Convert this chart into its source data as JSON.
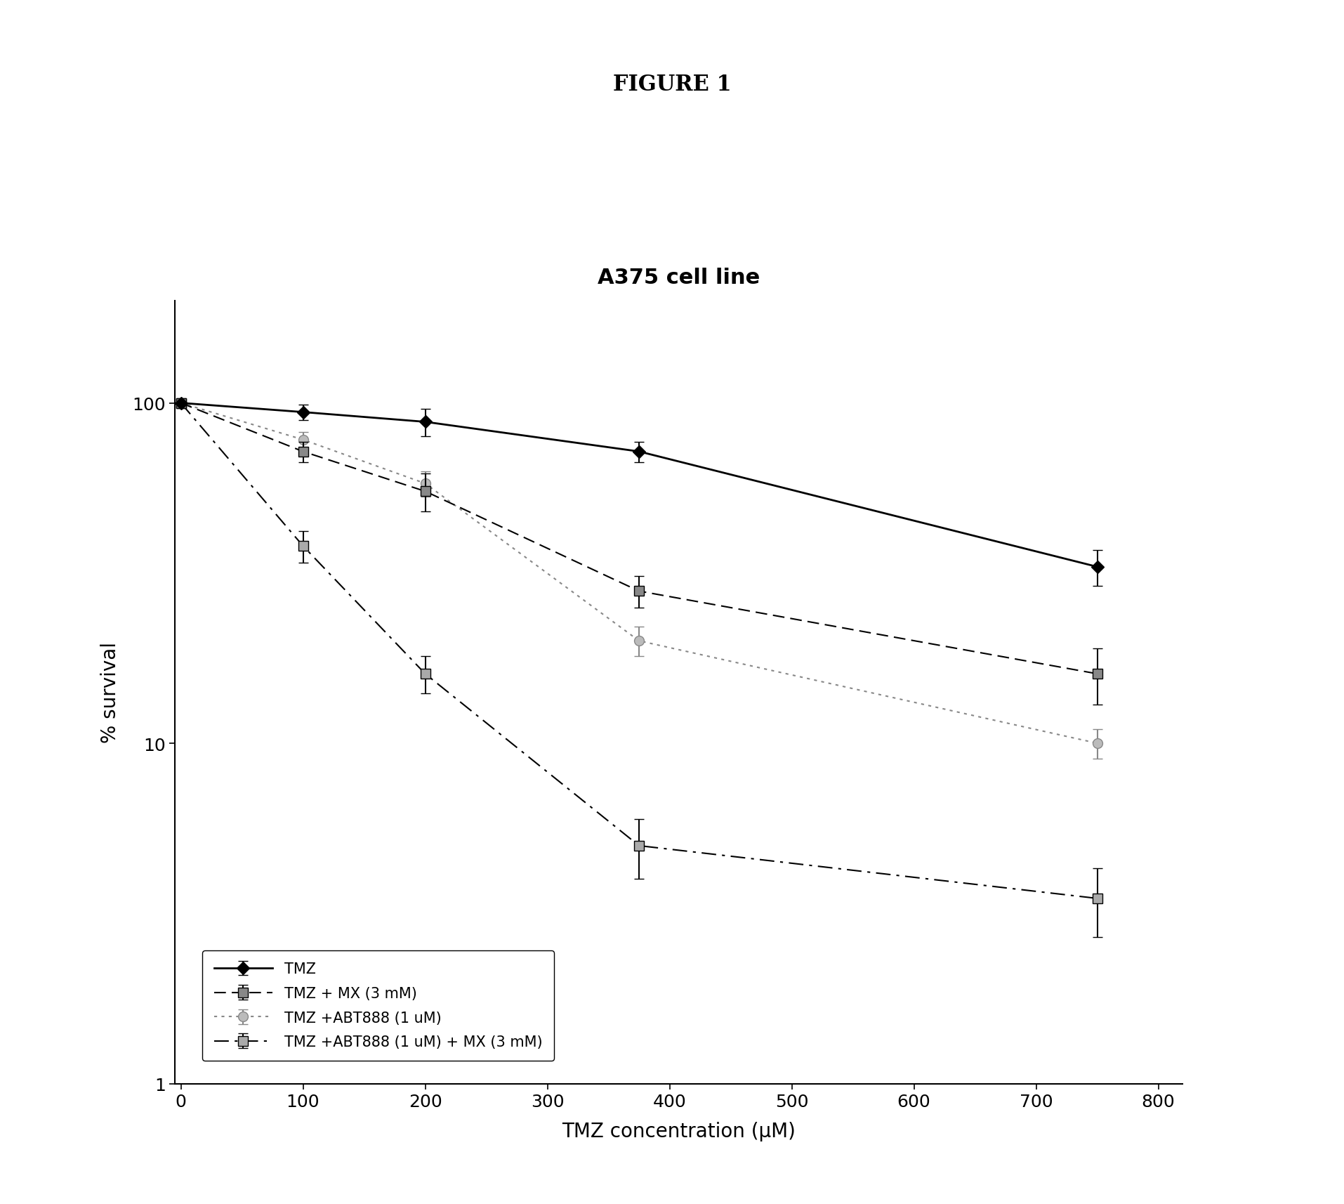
{
  "title": "A375 cell line",
  "figure_label": "FIGURE 1",
  "xlabel": "TMZ concentration (μM)",
  "ylabel": "% survival",
  "xlim": [
    -5,
    820
  ],
  "ylim": [
    1,
    200
  ],
  "yticks": [
    1,
    10,
    100
  ],
  "ytick_labels": [
    "1",
    "10",
    "100"
  ],
  "xticks": [
    0,
    100,
    200,
    300,
    400,
    500,
    600,
    700,
    800
  ],
  "series": [
    {
      "label": "TMZ",
      "x": [
        0,
        100,
        200,
        375,
        750
      ],
      "y": [
        100,
        94,
        88,
        72,
        33
      ],
      "yerr": [
        0,
        5,
        8,
        5,
        4
      ],
      "color": "#000000",
      "ecolor": "#000000",
      "linestyle": "solid",
      "linewidth": 2.0,
      "marker": "D",
      "markersize": 9,
      "markerfacecolor": "#000000",
      "markeredgecolor": "#000000"
    },
    {
      "label": "TMZ + MX (3 mM)",
      "x": [
        0,
        100,
        200,
        375,
        750
      ],
      "y": [
        100,
        72,
        55,
        28,
        16
      ],
      "yerr": [
        0,
        5,
        7,
        3,
        3
      ],
      "color": "#000000",
      "ecolor": "#000000",
      "linestyle": "dashed",
      "linewidth": 1.5,
      "marker": "s",
      "markersize": 10,
      "markerfacecolor": "#888888",
      "markeredgecolor": "#000000",
      "dashes": [
        8,
        4
      ]
    },
    {
      "label": "TMZ +ABT888 (1 uM)",
      "x": [
        0,
        100,
        200,
        375,
        750
      ],
      "y": [
        100,
        78,
        58,
        20,
        10
      ],
      "yerr": [
        0,
        4,
        5,
        2,
        1
      ],
      "color": "#888888",
      "ecolor": "#888888",
      "linestyle": "dotted",
      "linewidth": 1.5,
      "marker": "o",
      "markersize": 10,
      "markerfacecolor": "#bbbbbb",
      "markeredgecolor": "#888888",
      "dashes": [
        2,
        3
      ]
    },
    {
      "label": "TMZ +ABT888 (1 uM) + MX (3 mM)",
      "x": [
        0,
        100,
        200,
        375,
        750
      ],
      "y": [
        100,
        38,
        16,
        5,
        3.5
      ],
      "yerr": [
        0,
        4,
        2,
        1,
        0.8
      ],
      "color": "#000000",
      "ecolor": "#000000",
      "linestyle": "dashed",
      "linewidth": 1.5,
      "marker": "s",
      "markersize": 10,
      "markerfacecolor": "#aaaaaa",
      "markeredgecolor": "#000000",
      "dashes": [
        10,
        4,
        2,
        4
      ]
    }
  ]
}
